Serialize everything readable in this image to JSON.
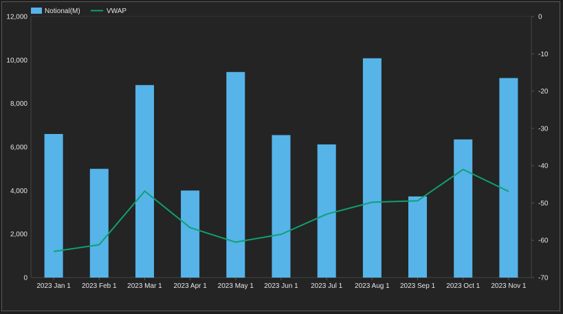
{
  "chart_data": {
    "type": "bar",
    "categories": [
      "2023 Jan 1",
      "2023 Feb 1",
      "2023 Mar 1",
      "2023 Apr 1",
      "2023 May 1",
      "2023 Jun 1",
      "2023 Jul 1",
      "2023 Aug 1",
      "2023 Sep 1",
      "2023 Oct 1",
      "2023 Nov 1"
    ],
    "series": [
      {
        "name": "Notional(M)",
        "type": "bar",
        "axis": "left",
        "color": "#56b4e9",
        "values": [
          6600,
          5000,
          8850,
          4000,
          9450,
          6550,
          6120,
          10080,
          3730,
          6350,
          9170
        ]
      },
      {
        "name": "VWAP",
        "type": "line",
        "axis": "right",
        "color": "#10a070",
        "values": [
          -63,
          -61.2,
          -46.8,
          -56.6,
          -60.5,
          -58.4,
          -53,
          -49.8,
          -49.4,
          -41,
          -46.9
        ]
      }
    ],
    "y_left": {
      "min": 0,
      "max": 12000,
      "ticks": [
        0,
        2000,
        4000,
        6000,
        8000,
        10000,
        12000
      ],
      "tick_labels": [
        "0",
        "2,000",
        "4,000",
        "6,000",
        "8,000",
        "10,000",
        "12,000"
      ]
    },
    "y_right": {
      "min": -70,
      "max": 0,
      "ticks": [
        0,
        -10,
        -20,
        -30,
        -40,
        -50,
        -60,
        -70
      ],
      "tick_labels": [
        "0",
        "-10",
        "-20",
        "-30",
        "-40",
        "-50",
        "-60",
        "-70"
      ]
    },
    "title": "",
    "xlabel": "",
    "ylabel": "",
    "legend": "top-left",
    "grid": false
  }
}
